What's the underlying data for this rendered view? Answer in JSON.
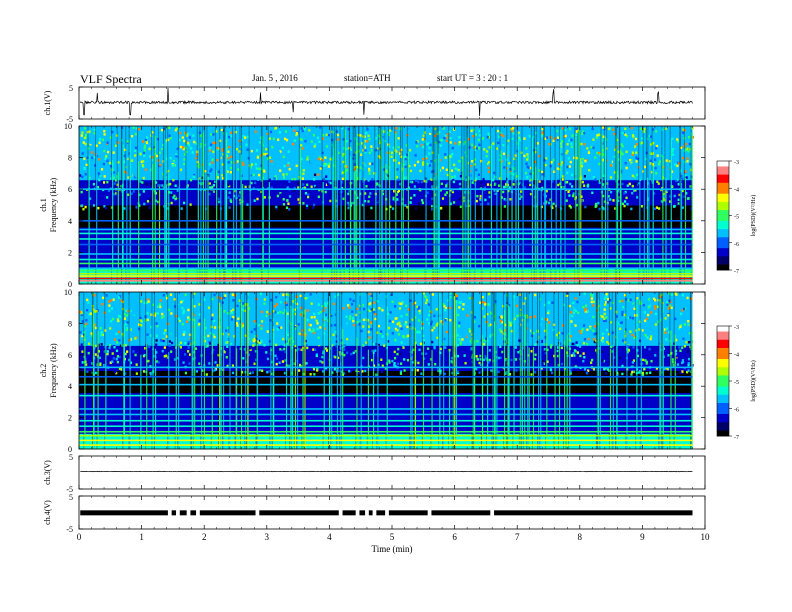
{
  "header": {
    "title": "VLF  Spectra",
    "date": "Jan. 5  , 2016",
    "station": "station=ATH",
    "start": "start  UT  =   3  : 20 : 1"
  },
  "chart_data": [
    {
      "type": "line",
      "ylabel": "ch.1(V)",
      "ylim": [
        -5,
        5
      ],
      "yticks": [
        "5",
        "-5"
      ],
      "xlim": [
        0,
        10
      ],
      "baseline": 0.2,
      "noise": 0.4,
      "spikes": [
        0.08,
        0.29,
        0.82,
        1.42,
        2.9,
        3.42,
        4.55,
        6.4,
        7.58,
        9.25
      ]
    },
    {
      "type": "heatmap",
      "ylabel": "Frequency  (kHz)",
      "chlabel": "ch.1",
      "ylim": [
        0,
        10
      ],
      "yticks": [
        "0",
        "2",
        "4",
        "6",
        "8",
        "10"
      ],
      "xlim": [
        0,
        9.8
      ],
      "colorbar": {
        "label": "log(PSD)(V²/Hz)",
        "range": [
          -7,
          -3
        ],
        "ticks": [
          "-3",
          "-4",
          "-5",
          "-6",
          "-7"
        ]
      },
      "bands": [
        {
          "f": 0.2,
          "v": -3.3
        },
        {
          "f": 0.35,
          "v": -3.6
        },
        {
          "f": 0.5,
          "v": -4.2
        },
        {
          "f": 0.65,
          "v": -4.6
        },
        {
          "f": 0.85,
          "v": -4.9
        },
        {
          "f": 1.0,
          "v": -5.6
        },
        {
          "f": 1.3,
          "v": -5.0
        },
        {
          "f": 1.55,
          "v": -5.4
        },
        {
          "f": 1.9,
          "v": -5.8
        },
        {
          "f": 2.5,
          "v": -5.9
        },
        {
          "f": 2.85,
          "v": -5.5
        },
        {
          "f": 3.2,
          "v": -5.2
        },
        {
          "f": 3.45,
          "v": -5.6
        },
        {
          "f": 4.0,
          "v": -6.0
        },
        {
          "f": 6.0,
          "v": -5.6
        }
      ]
    },
    {
      "type": "heatmap",
      "ylabel": "Frequency  (kHz)",
      "chlabel": "ch.2",
      "ylim": [
        0,
        10
      ],
      "yticks": [
        "0",
        "2",
        "4",
        "6",
        "8",
        "10"
      ],
      "xlim": [
        0,
        9.8
      ],
      "colorbar": {
        "label": "log(PSD)(V²/Hz)",
        "range": [
          -7,
          -3
        ],
        "ticks": [
          "-3",
          "-4",
          "-5",
          "-6",
          "-7"
        ]
      },
      "bands": [
        {
          "f": 0.25,
          "v": -4.5
        },
        {
          "f": 0.55,
          "v": -4.4
        },
        {
          "f": 0.85,
          "v": -4.8
        },
        {
          "f": 1.1,
          "v": -5.0
        },
        {
          "f": 1.45,
          "v": -5.3
        },
        {
          "f": 1.8,
          "v": -5.5
        },
        {
          "f": 2.2,
          "v": -5.6
        },
        {
          "f": 2.55,
          "v": -5.8
        },
        {
          "f": 3.4,
          "v": -5.5
        },
        {
          "f": 4.1,
          "v": -5.6
        },
        {
          "f": 4.6,
          "v": -5.9
        },
        {
          "f": 5.2,
          "v": -5.8
        }
      ]
    },
    {
      "type": "line",
      "ylabel": "ch.3(V)",
      "ylim": [
        -5,
        5
      ],
      "yticks": [
        "5",
        "-5"
      ],
      "xlim": [
        0,
        10
      ],
      "baseline": 0.3,
      "noise": 0.08,
      "spikes": []
    },
    {
      "type": "line",
      "ylabel": "ch.4(V)",
      "ylim": [
        -5,
        5
      ],
      "yticks": [
        "5",
        "-5"
      ],
      "xlim": [
        0,
        10
      ],
      "xlabel": "Time  (min)",
      "xticks": [
        "0",
        "1",
        "2",
        "3",
        "4",
        "5",
        "6",
        "7",
        "8",
        "9",
        "10"
      ],
      "baseline": -0.1,
      "gaps": [
        1.45,
        1.58,
        1.75,
        1.9,
        2.85,
        4.18,
        4.45,
        4.6,
        4.72,
        4.92,
        5.6,
        6.6
      ]
    }
  ],
  "colors": {
    "colormap": [
      "#000000",
      "#000066",
      "#0000c8",
      "#0060ff",
      "#00c0ff",
      "#00ffd0",
      "#30ff60",
      "#b0ff00",
      "#ffff00",
      "#ff8000",
      "#ff0000",
      "#ff8080",
      "#ffffff"
    ]
  }
}
